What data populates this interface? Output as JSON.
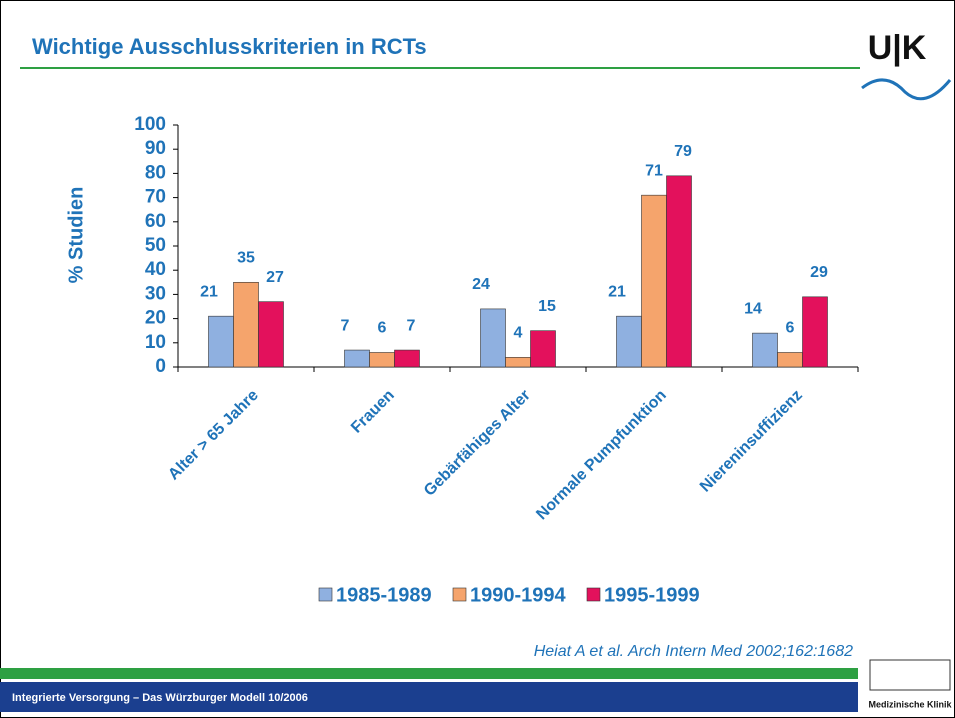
{
  "slide_title": "Wichtige Ausschlusskriterien in RCTs",
  "citation": "Heiat A et al. Arch Intern Med 2002;162:1682",
  "footer": "Integrierte Versorgung – Das Würzburger Modell  10/2006",
  "logo_text": "U|K",
  "institution": "Medizinische Klinik",
  "chart_data": {
    "type": "bar",
    "y_label": "% Studien",
    "categories": [
      "Alter > 65 Jahre",
      "Frauen",
      "Gebärfähiges Alter",
      "Normale Pumpfunktion",
      "Niereninsuffizienz"
    ],
    "series": [
      {
        "name": "1985-1989",
        "color": "#8fb0e0",
        "values": [
          21,
          7,
          24,
          21,
          14
        ]
      },
      {
        "name": "1990-1994",
        "color": "#f5a46c",
        "values": [
          35,
          6,
          4,
          71,
          6
        ]
      },
      {
        "name": "1995-1999",
        "color": "#e3115c",
        "values": [
          27,
          7,
          15,
          79,
          29
        ]
      }
    ],
    "ylim": [
      0,
      100
    ],
    "yticks": [
      0,
      10,
      20,
      30,
      40,
      50,
      60,
      70,
      80,
      90,
      100
    ],
    "legend": "bottom"
  }
}
